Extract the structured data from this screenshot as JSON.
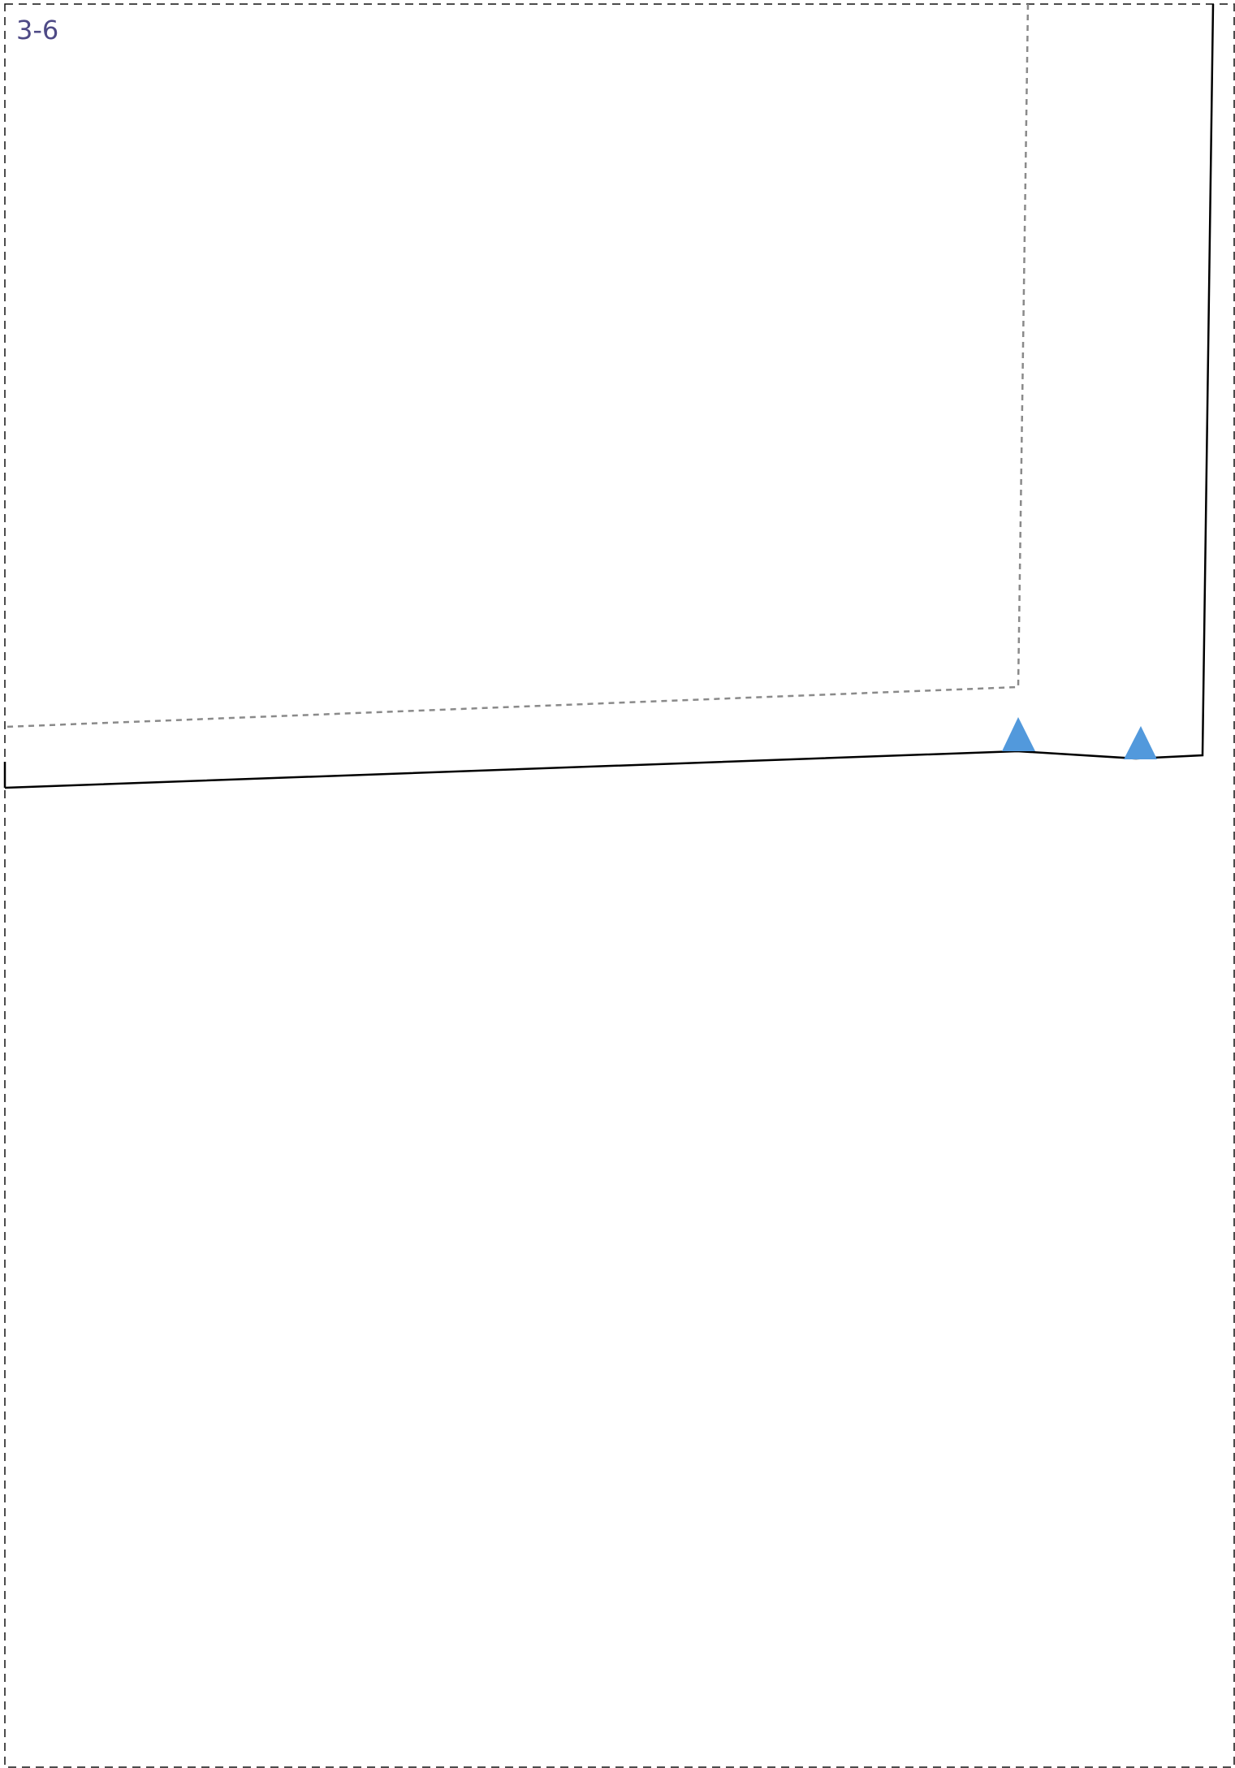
{
  "page": {
    "label": "3-6"
  },
  "colors": {
    "label": "#4e4a86",
    "page_border": "#111111",
    "pattern_outline": "#000000",
    "seam_guide": "#8a8a8a",
    "notch": "#5299dc",
    "background": "#ffffff"
  },
  "notches": [
    {
      "name": "notch-1",
      "shape": "triangle-up"
    },
    {
      "name": "notch-2",
      "shape": "triangle-up"
    }
  ]
}
